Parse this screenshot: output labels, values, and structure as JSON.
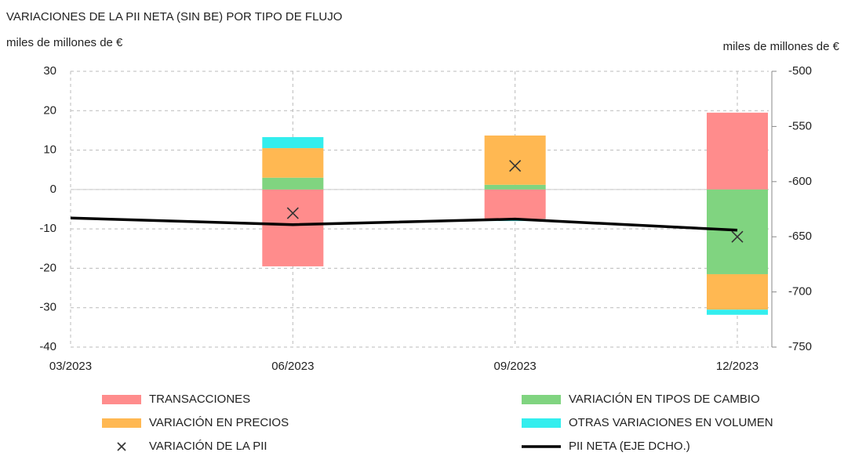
{
  "chart_data": {
    "type": "bar",
    "title": "VARIACIONES DE LA PII NETA (SIN BE) POR TIPO DE FLUJO",
    "ylabel": "miles de millones de €",
    "y2label": "miles de millones de €",
    "categories": [
      "03/2023",
      "06/2023",
      "09/2023",
      "12/2023"
    ],
    "series": [
      {
        "name": "TRANSACCIONES",
        "type": "bar",
        "color": "#ff8c8c",
        "values": [
          null,
          -19.5,
          -7.5,
          19.5
        ]
      },
      {
        "name": "VARIACIÓN EN TIPOS DE CAMBIO",
        "type": "bar",
        "color": "#80d480",
        "values": [
          null,
          3,
          1.2,
          -21.5
        ]
      },
      {
        "name": "VARIACIÓN EN PRECIOS",
        "type": "bar",
        "color": "#ffb852",
        "values": [
          null,
          7.5,
          12.5,
          -9
        ]
      },
      {
        "name": "OTRAS VARIACIONES EN VOLUMEN",
        "type": "bar",
        "color": "#33eeee",
        "values": [
          null,
          2.8,
          -0.5,
          -1.3
        ]
      },
      {
        "name": "VARIACIÓN DE LA PII",
        "type": "scatter",
        "color": "#333333",
        "values": [
          null,
          -6,
          6,
          -12
        ]
      },
      {
        "name": "PII NETA (EJE DCHO.)",
        "type": "line",
        "axis": "y2",
        "color": "#000000",
        "values": [
          -633,
          -639,
          -634,
          -644
        ]
      }
    ],
    "ylim": [
      -40,
      30
    ],
    "yticks": [
      30,
      20,
      10,
      0,
      -10,
      -20,
      -30,
      -40
    ],
    "y2lim": [
      -750,
      -500
    ],
    "y2ticks": [
      -500,
      -550,
      -600,
      -650,
      -700,
      -750
    ],
    "grid": true,
    "legend": "bottom"
  }
}
